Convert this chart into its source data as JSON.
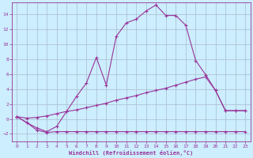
{
  "xlabel": "Windchill (Refroidissement éolien,°C)",
  "background_color": "#cceeff",
  "grid_color": "#aabbcc",
  "line_color": "#993399",
  "xlim": [
    -0.5,
    23.5
  ],
  "ylim": [
    -3.0,
    15.5
  ],
  "xticks": [
    0,
    1,
    2,
    3,
    4,
    5,
    6,
    7,
    8,
    9,
    10,
    11,
    12,
    13,
    14,
    15,
    16,
    17,
    18,
    19,
    20,
    21,
    22,
    23
  ],
  "yticks": [
    -2,
    0,
    2,
    4,
    6,
    8,
    10,
    12,
    14
  ],
  "line1_x": [
    0,
    1,
    2,
    3,
    4,
    5,
    6,
    7,
    8,
    9,
    10,
    11,
    12,
    13,
    14,
    15,
    16,
    17,
    18,
    19,
    20,
    21,
    22,
    23
  ],
  "line1_y": [
    0.3,
    -0.5,
    -1.5,
    -1.8,
    -1.7,
    -1.7,
    -1.7,
    -1.7,
    -1.7,
    -1.7,
    -1.7,
    -1.7,
    -1.7,
    -1.7,
    -1.7,
    -1.7,
    -1.7,
    -1.7,
    -1.7,
    -1.7,
    -1.7,
    -1.7,
    -1.7,
    -1.7
  ],
  "line2_x": [
    0,
    1,
    2,
    3,
    4,
    5,
    6,
    7,
    8,
    9,
    10,
    11,
    12,
    13,
    14,
    15,
    16,
    17,
    18,
    19,
    20,
    21,
    22,
    23
  ],
  "line2_y": [
    0.3,
    0.1,
    0.2,
    0.4,
    0.7,
    1.0,
    1.2,
    1.5,
    1.8,
    2.1,
    2.5,
    2.8,
    3.1,
    3.5,
    3.8,
    4.1,
    4.5,
    4.9,
    5.3,
    5.6,
    3.8,
    1.1,
    1.1,
    1.1
  ],
  "line3_x": [
    0,
    1,
    2,
    3,
    4,
    5,
    6,
    7,
    8,
    9,
    10,
    11,
    12,
    13,
    14,
    15,
    16,
    17,
    18,
    19,
    20,
    21,
    22,
    23
  ],
  "line3_y": [
    0.3,
    -0.5,
    -1.2,
    -1.7,
    -1.0,
    1.0,
    3.0,
    4.8,
    8.2,
    4.5,
    11.0,
    12.8,
    13.3,
    14.4,
    15.2,
    13.8,
    13.8,
    12.5,
    7.8,
    5.9,
    3.8,
    1.1,
    1.1,
    1.1
  ]
}
